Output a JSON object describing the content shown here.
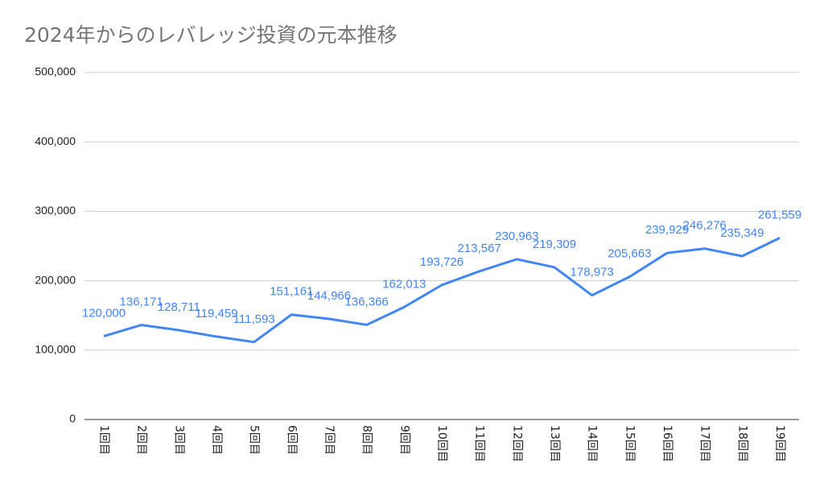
{
  "chart_data": {
    "type": "line",
    "title": "2024年からのレバレッジ投資の元本推移",
    "categories": [
      "1回目",
      "2回目",
      "3回目",
      "4回目",
      "5回目",
      "6回目",
      "7回目",
      "8回目",
      "9回目",
      "10回目",
      "11回目",
      "12回目",
      "13回目",
      "14回目",
      "15回目",
      "16回目",
      "17回目",
      "18回目",
      "19回目"
    ],
    "series": [
      {
        "name": "元本",
        "color": "#4285f4",
        "values": [
          120000,
          136171,
          128711,
          119459,
          111593,
          151161,
          144966,
          136366,
          162013,
          193726,
          213567,
          230963,
          219309,
          178973,
          205663,
          239929,
          246276,
          235349,
          261559
        ],
        "value_labels": [
          "120,000",
          "136,171",
          "128,711",
          "119,459",
          "111,593",
          "151,161",
          "144,966",
          "136,366",
          "162,013",
          "193,726",
          "213,567",
          "230,963",
          "219,309",
          "178,973",
          "205,663",
          "239,929",
          "246,276",
          "235,349",
          "261,559"
        ]
      }
    ],
    "ylim": [
      0,
      500000
    ],
    "yticks": [
      0,
      {
        "value": 100000,
        "label": "100,000"
      },
      {
        "value": 200000,
        "label": "200,000"
      },
      {
        "value": 300000,
        "label": "300,000"
      },
      {
        "value": 400000,
        "label": "400,000"
      },
      {
        "value": 500000,
        "label": "500,000"
      }
    ],
    "grid": true
  }
}
